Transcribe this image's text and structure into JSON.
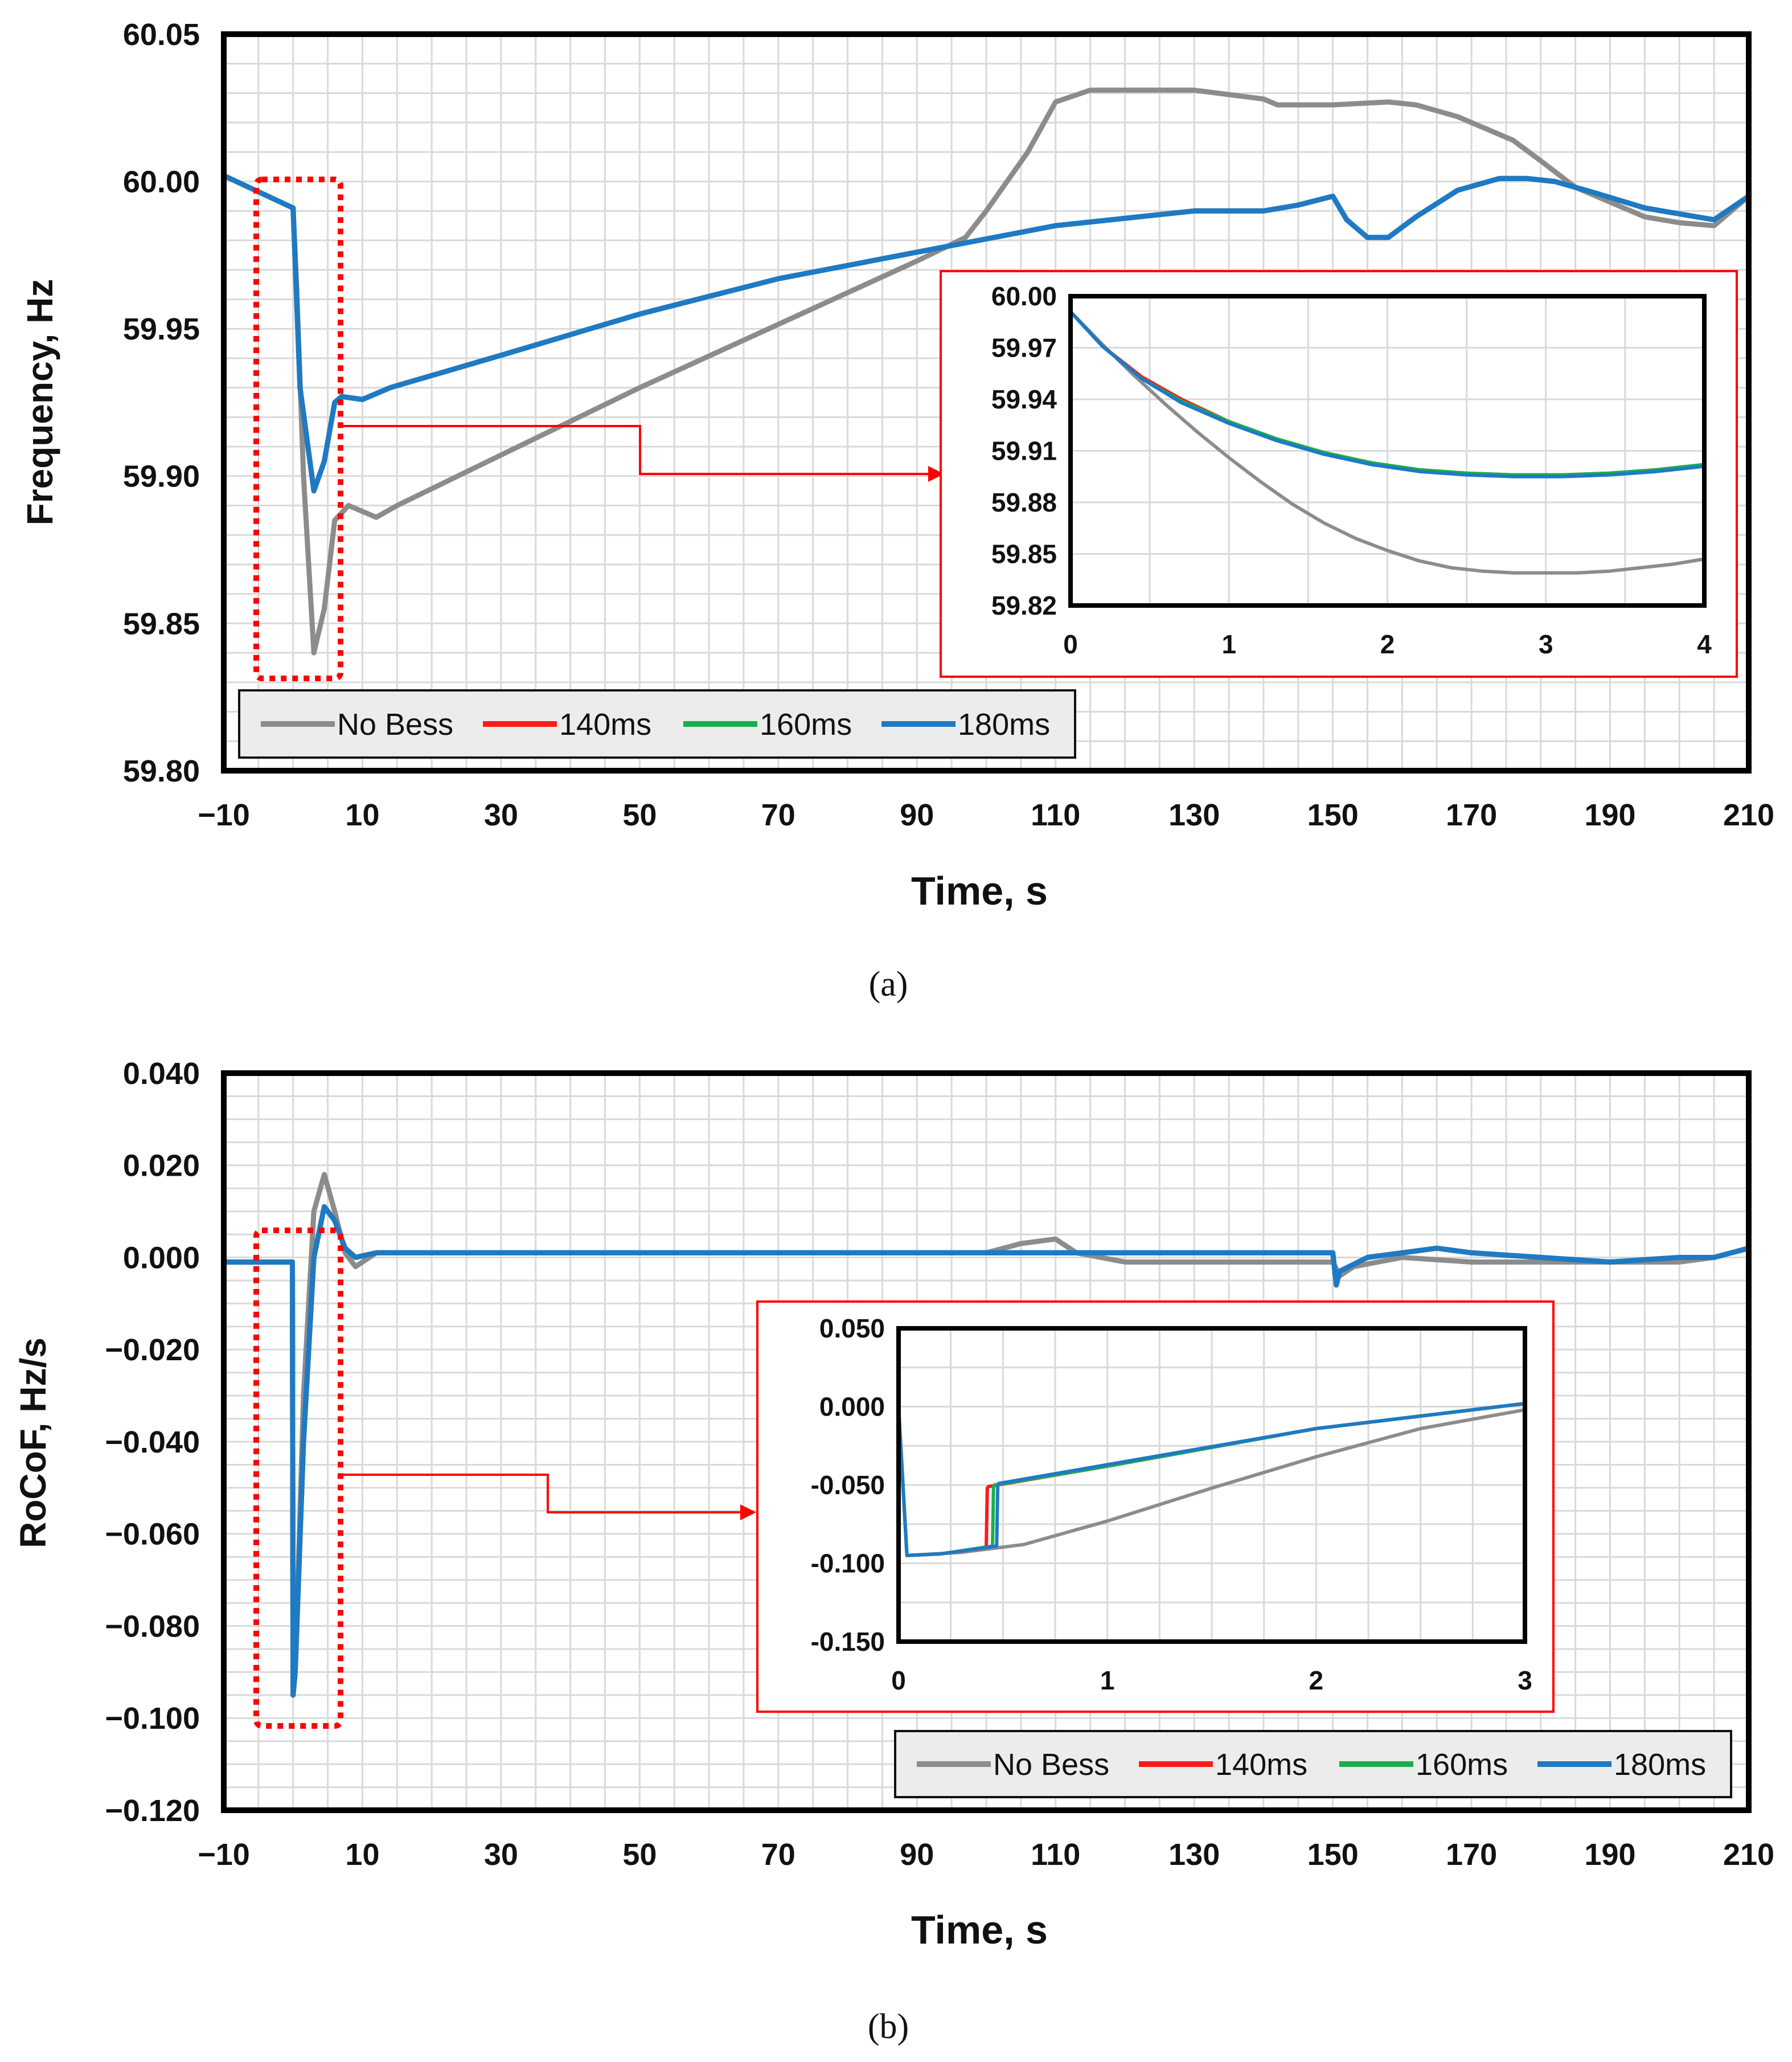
{
  "legend": {
    "entries": [
      {
        "label": "No Bess",
        "color": "#8c8c8c"
      },
      {
        "label": "140ms",
        "color": "#ff1a1a"
      },
      {
        "label": "160ms",
        "color": "#18b04a"
      },
      {
        "label": "180ms",
        "color": "#1e7ac4"
      }
    ]
  },
  "colors": {
    "frame": "#000000",
    "grid": "#d9d9d9",
    "zoom_box": "#ff0000",
    "legend_bg": "#ececec"
  },
  "chart_data": [
    {
      "id": "a",
      "type": "line",
      "caption": "(a)",
      "ylabel": "Frequency, Hz",
      "xlabel": "Time, s",
      "xlim": [
        -10,
        210
      ],
      "ylim": [
        59.8,
        60.05
      ],
      "xticks": [
        -10,
        10,
        30,
        50,
        70,
        90,
        110,
        130,
        150,
        170,
        190,
        210
      ],
      "xtick_labels": [
        "−10",
        "10",
        "30",
        "50",
        "70",
        "90",
        "110",
        "130",
        "150",
        "170",
        "190",
        "210"
      ],
      "yticks": [
        59.8,
        59.85,
        59.9,
        59.95,
        60.0,
        60.05
      ],
      "ytick_labels": [
        "59.80",
        "59.85",
        "59.90",
        "59.95",
        "60.00",
        "60.05"
      ],
      "series": [
        {
          "name": "No Bess",
          "x": [
            -10,
            0,
            0.5,
            1.5,
            3,
            4.5,
            6,
            8,
            12,
            15,
            50,
            90,
            97,
            100,
            106,
            110,
            115,
            120,
            130,
            140,
            142,
            150,
            158,
            162,
            168,
            172,
            176,
            180,
            185,
            190,
            195,
            200,
            205,
            210
          ],
          "y": [
            60.002,
            59.991,
            59.965,
            59.9,
            59.84,
            59.855,
            59.885,
            59.89,
            59.886,
            59.89,
            59.93,
            59.973,
            59.981,
            59.99,
            60.01,
            60.027,
            60.031,
            60.031,
            60.031,
            60.028,
            60.026,
            60.026,
            60.027,
            60.026,
            60.022,
            60.018,
            60.014,
            60.007,
            59.998,
            59.993,
            59.988,
            59.986,
            59.985,
            59.995
          ]
        },
        {
          "name": "140ms",
          "x": [
            -10,
            0,
            1,
            3,
            4.5,
            6,
            7,
            10,
            14,
            30,
            50,
            70,
            90,
            110,
            130,
            140,
            145,
            150,
            152,
            155,
            158,
            162,
            168,
            174,
            178,
            182,
            188,
            195,
            200,
            205,
            210
          ],
          "y": [
            60.002,
            59.991,
            59.93,
            59.895,
            59.905,
            59.925,
            59.927,
            59.926,
            59.93,
            59.941,
            59.955,
            59.967,
            59.976,
            59.985,
            59.99,
            59.99,
            59.992,
            59.995,
            59.987,
            59.981,
            59.981,
            59.988,
            59.997,
            60.001,
            60.001,
            60.0,
            59.996,
            59.991,
            59.989,
            59.987,
            59.995
          ]
        },
        {
          "name": "160ms",
          "x": [
            -10,
            0,
            1,
            3,
            4.5,
            6,
            7,
            10,
            14,
            30,
            50,
            70,
            90,
            110,
            130,
            140,
            145,
            150,
            152,
            155,
            158,
            162,
            168,
            174,
            178,
            182,
            188,
            195,
            200,
            205,
            210
          ],
          "y": [
            60.002,
            59.991,
            59.93,
            59.895,
            59.905,
            59.925,
            59.927,
            59.926,
            59.93,
            59.941,
            59.955,
            59.967,
            59.976,
            59.985,
            59.99,
            59.99,
            59.992,
            59.995,
            59.987,
            59.981,
            59.981,
            59.988,
            59.997,
            60.001,
            60.001,
            60.0,
            59.996,
            59.991,
            59.989,
            59.987,
            59.995
          ]
        },
        {
          "name": "180ms",
          "x": [
            -10,
            0,
            1,
            3,
            4.5,
            6,
            7,
            10,
            14,
            30,
            50,
            70,
            90,
            110,
            130,
            140,
            145,
            150,
            152,
            155,
            158,
            162,
            168,
            174,
            178,
            182,
            188,
            195,
            200,
            205,
            210
          ],
          "y": [
            60.002,
            59.991,
            59.93,
            59.895,
            59.905,
            59.925,
            59.927,
            59.926,
            59.93,
            59.941,
            59.955,
            59.967,
            59.976,
            59.985,
            59.99,
            59.99,
            59.992,
            59.995,
            59.987,
            59.981,
            59.981,
            59.988,
            59.997,
            60.001,
            60.001,
            60.0,
            59.996,
            59.991,
            59.989,
            59.987,
            59.995
          ]
        }
      ],
      "inset": {
        "xlim": [
          0,
          4
        ],
        "ylim": [
          59.82,
          60.0
        ],
        "xticks": [
          0,
          1,
          2,
          3,
          4
        ],
        "xtick_labels": [
          "0",
          "1",
          "2",
          "3",
          "4"
        ],
        "yticks": [
          59.82,
          59.85,
          59.88,
          59.91,
          59.94,
          59.97,
          60.0
        ],
        "ytick_labels": [
          "59.82",
          "59.85",
          "59.88",
          "59.91",
          "59.94",
          "59.97",
          "60.00"
        ],
        "series": [
          {
            "name": "No Bess",
            "x": [
              0,
              0.2,
              0.4,
              0.6,
              0.8,
              1.0,
              1.2,
              1.4,
              1.6,
              1.8,
              2.0,
              2.2,
              2.4,
              2.6,
              2.8,
              3.0,
              3.2,
              3.4,
              3.6,
              3.8,
              4.0
            ],
            "y": [
              59.991,
              59.972,
              59.954,
              59.937,
              59.921,
              59.906,
              59.892,
              59.879,
              59.868,
              59.859,
              59.852,
              59.846,
              59.842,
              59.84,
              59.839,
              59.839,
              59.839,
              59.84,
              59.842,
              59.844,
              59.847
            ]
          },
          {
            "name": "140ms",
            "x": [
              0,
              0.2,
              0.45,
              0.7,
              1.0,
              1.3,
              1.6,
              1.9,
              2.2,
              2.5,
              2.8,
              3.1,
              3.4,
              3.7,
              4.0
            ],
            "y": [
              59.991,
              59.971,
              59.953,
              59.94,
              59.927,
              59.917,
              59.909,
              59.903,
              59.899,
              59.897,
              59.896,
              59.896,
              59.897,
              59.899,
              59.902
            ]
          },
          {
            "name": "160ms",
            "x": [
              0,
              0.2,
              0.45,
              0.7,
              1.0,
              1.3,
              1.6,
              1.9,
              2.2,
              2.5,
              2.8,
              3.1,
              3.4,
              3.7,
              4.0
            ],
            "y": [
              59.991,
              59.971,
              59.952,
              59.939,
              59.927,
              59.917,
              59.909,
              59.903,
              59.899,
              59.897,
              59.896,
              59.896,
              59.897,
              59.899,
              59.902
            ]
          },
          {
            "name": "180ms",
            "x": [
              0,
              0.2,
              0.45,
              0.7,
              1.0,
              1.3,
              1.6,
              1.9,
              2.2,
              2.5,
              2.8,
              3.1,
              3.4,
              3.7,
              4.0
            ],
            "y": [
              59.991,
              59.971,
              59.952,
              59.938,
              59.926,
              59.916,
              59.908,
              59.902,
              59.898,
              59.896,
              59.895,
              59.895,
              59.896,
              59.898,
              59.901
            ]
          }
        ]
      }
    },
    {
      "id": "b",
      "type": "line",
      "caption": "(b)",
      "ylabel": "RoCoF, Hz/s",
      "xlabel": "Time, s",
      "xlim": [
        -10,
        210
      ],
      "ylim": [
        -0.12,
        0.04
      ],
      "xticks": [
        -10,
        10,
        30,
        50,
        70,
        90,
        110,
        130,
        150,
        170,
        190,
        210
      ],
      "xtick_labels": [
        "−10",
        "10",
        "30",
        "50",
        "70",
        "90",
        "110",
        "130",
        "150",
        "170",
        "190",
        "210"
      ],
      "yticks": [
        -0.12,
        -0.1,
        -0.08,
        -0.06,
        -0.04,
        -0.02,
        0.0,
        0.02,
        0.04
      ],
      "ytick_labels": [
        "−0.120",
        "−0.100",
        "−0.080",
        "−0.060",
        "−0.040",
        "−0.020",
        "0.000",
        "0.020",
        "0.040"
      ],
      "series": [
        {
          "name": "No Bess",
          "x": [
            -10,
            -0.1,
            0,
            0.3,
            1.5,
            3,
            4.5,
            6,
            7.5,
            9,
            12,
            100,
            105,
            110,
            113,
            120,
            150,
            151,
            153,
            160,
            170,
            180,
            190,
            200,
            205,
            210
          ],
          "y": [
            -0.001,
            -0.001,
            -0.095,
            -0.09,
            -0.03,
            0.01,
            0.018,
            0.01,
            0.001,
            -0.002,
            0.001,
            0.001,
            0.003,
            0.004,
            0.001,
            -0.001,
            -0.001,
            -0.004,
            -0.002,
            0.0,
            -0.001,
            -0.001,
            -0.001,
            -0.001,
            0.0,
            0.002
          ]
        },
        {
          "name": "140ms",
          "x": [
            -10,
            -0.1,
            0,
            0.3,
            1.5,
            3,
            4.5,
            6,
            7.5,
            9,
            12,
            150,
            150.5,
            151,
            155,
            160,
            165,
            170,
            180,
            190,
            200,
            205,
            210
          ],
          "y": [
            -0.001,
            -0.001,
            -0.095,
            -0.09,
            -0.04,
            0.0,
            0.011,
            0.008,
            0.002,
            0.0,
            0.001,
            0.001,
            -0.006,
            -0.003,
            0.0,
            0.001,
            0.002,
            0.001,
            0.0,
            -0.001,
            0.0,
            0.0,
            0.002
          ]
        },
        {
          "name": "160ms",
          "x": [
            -10,
            -0.1,
            0,
            0.3,
            1.5,
            3,
            4.5,
            6,
            7.5,
            9,
            12,
            150,
            150.5,
            151,
            155,
            160,
            165,
            170,
            180,
            190,
            200,
            205,
            210
          ],
          "y": [
            -0.001,
            -0.001,
            -0.095,
            -0.09,
            -0.04,
            0.0,
            0.011,
            0.008,
            0.002,
            0.0,
            0.001,
            0.001,
            -0.006,
            -0.003,
            0.0,
            0.001,
            0.002,
            0.001,
            0.0,
            -0.001,
            0.0,
            0.0,
            0.002
          ]
        },
        {
          "name": "180ms",
          "x": [
            -10,
            -0.1,
            0,
            0.3,
            1.5,
            3,
            4.5,
            6,
            7.5,
            9,
            12,
            150,
            150.5,
            151,
            155,
            160,
            165,
            170,
            180,
            190,
            200,
            205,
            210
          ],
          "y": [
            -0.001,
            -0.001,
            -0.095,
            -0.09,
            -0.04,
            0.0,
            0.011,
            0.008,
            0.002,
            0.0,
            0.001,
            0.001,
            -0.006,
            -0.003,
            0.0,
            0.001,
            0.002,
            0.001,
            0.0,
            -0.001,
            0.0,
            0.0,
            0.002
          ]
        }
      ],
      "inset": {
        "xlim": [
          0,
          3
        ],
        "ylim": [
          -0.15,
          0.05
        ],
        "xticks": [
          0,
          1,
          2,
          3
        ],
        "xtick_labels": [
          "0",
          "1",
          "2",
          "3"
        ],
        "yticks": [
          -0.15,
          -0.1,
          -0.05,
          0.0,
          0.05
        ],
        "ytick_labels": [
          "-0.150",
          "-0.100",
          "-0.050",
          "0.000",
          "0.050"
        ],
        "series": [
          {
            "name": "No Bess",
            "x": [
              0,
              0.04,
              0.3,
              0.6,
              1.0,
              1.5,
              2.0,
              2.5,
              3.0
            ],
            "y": [
              0.0,
              -0.095,
              -0.093,
              -0.088,
              -0.073,
              -0.052,
              -0.032,
              -0.014,
              -0.002
            ]
          },
          {
            "name": "140ms",
            "x": [
              0,
              0.04,
              0.2,
              0.42,
              0.425,
              0.43,
              1.0,
              2.0,
              3.0
            ],
            "y": [
              0.0,
              -0.095,
              -0.094,
              -0.09,
              -0.052,
              -0.051,
              -0.038,
              -0.014,
              0.002
            ]
          },
          {
            "name": "160ms",
            "x": [
              0,
              0.04,
              0.2,
              0.45,
              0.455,
              0.46,
              1.0,
              2.0,
              3.0
            ],
            "y": [
              0.0,
              -0.095,
              -0.094,
              -0.089,
              -0.051,
              -0.05,
              -0.038,
              -0.014,
              0.002
            ]
          },
          {
            "name": "180ms",
            "x": [
              0,
              0.04,
              0.2,
              0.47,
              0.475,
              0.48,
              1.0,
              2.0,
              3.0
            ],
            "y": [
              0.0,
              -0.095,
              -0.094,
              -0.089,
              -0.05,
              -0.049,
              -0.037,
              -0.014,
              0.002
            ]
          }
        ]
      }
    }
  ]
}
